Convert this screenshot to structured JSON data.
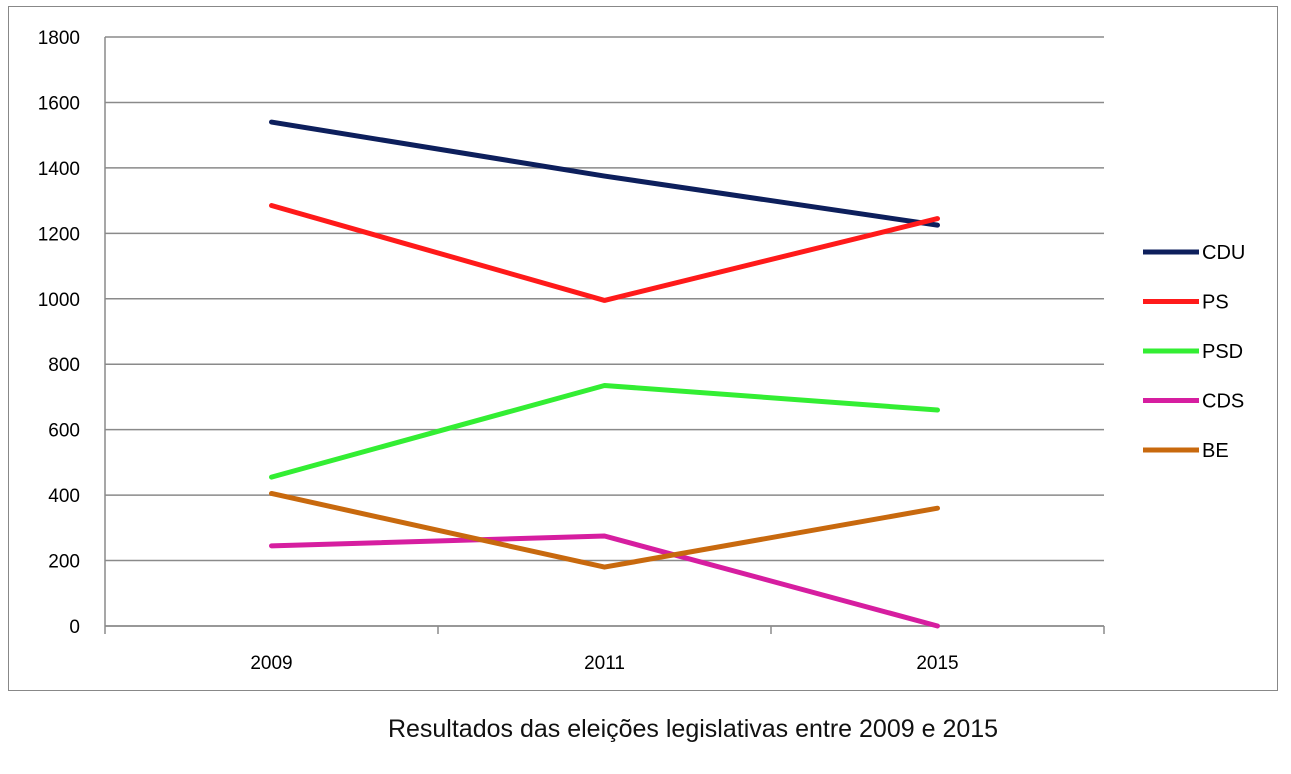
{
  "chart_data": {
    "type": "line",
    "categories": [
      "2009",
      "2011",
      "2015"
    ],
    "ylim": [
      0,
      1800
    ],
    "yticks": [
      0,
      200,
      400,
      600,
      800,
      1000,
      1200,
      1400,
      1600,
      1800
    ],
    "grid": true,
    "legend_position": "right",
    "series": [
      {
        "name": "CDU",
        "color": "#0d1f5c",
        "values": [
          1540,
          1375,
          1225
        ]
      },
      {
        "name": "PS",
        "color": "#ff1a1a",
        "values": [
          1285,
          995,
          1245
        ]
      },
      {
        "name": "PSD",
        "color": "#33ee33",
        "values": [
          455,
          735,
          660
        ]
      },
      {
        "name": "CDS",
        "color": "#d61ea0",
        "values": [
          245,
          275,
          0
        ]
      },
      {
        "name": "BE",
        "color": "#c8690e",
        "values": [
          405,
          180,
          360
        ]
      }
    ]
  },
  "caption": "Resultados das eleições legislativas entre 2009 e 2015"
}
